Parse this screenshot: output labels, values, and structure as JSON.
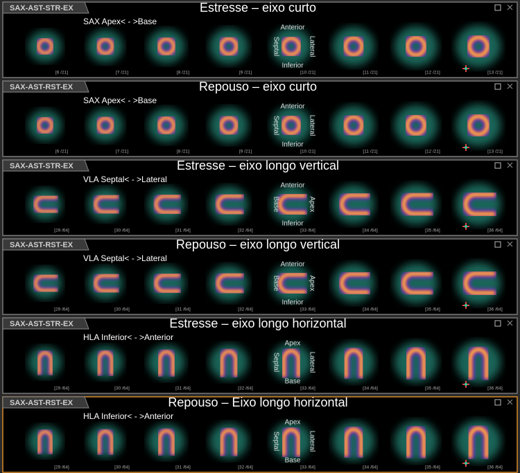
{
  "panels": [
    {
      "tab": "SAX-AST-STR-EX",
      "title": "Estresse – eixo curto",
      "orientation": "SAX  Apex< - >Base",
      "slices": [
        "[6 /21]",
        "[7 /21]",
        "[8 /21]",
        "[9 /21]",
        "[10 /21]",
        "[11 /21]",
        "[12 /21]",
        "[13 /21]"
      ],
      "markers": {
        "top": "Anterior",
        "bottom": "Inferior",
        "left": "Septal",
        "right": "Lateral"
      }
    },
    {
      "tab": "SAX-AST-RST-EX",
      "title": "Repouso – eixo curto",
      "orientation": "SAX  Apex< - >Base",
      "slices": [
        "[6 /21]",
        "[7 /21]",
        "[8 /21]",
        "[9 /21]",
        "[10 /21]",
        "[11 /21]",
        "[12 /21]",
        "[13 /21]"
      ],
      "markers": {
        "top": "Anterior",
        "bottom": "Inferior",
        "left": "Septal",
        "right": "Lateral"
      }
    },
    {
      "tab": "SAX-AST-STR-EX",
      "title": "Estresse – eixo longo vertical",
      "orientation": "VLA  Septal< - >Lateral",
      "slices": [
        "[29 /64]",
        "[30 /64]",
        "[31 /64]",
        "[32 /64]",
        "[33 /64]",
        "[34 /64]",
        "[35 /64]",
        "[36 /64]"
      ],
      "markers": {
        "top": "Anterior",
        "bottom": "Inferior",
        "left": "Base",
        "right": "Apex"
      }
    },
    {
      "tab": "SAX-AST-RST-EX",
      "title": "Repouso – eixo longo vertical",
      "orientation": "VLA  Septal< - >Lateral",
      "slices": [
        "[29 /64]",
        "[30 /64]",
        "[31 /64]",
        "[32 /64]",
        "[33 /64]",
        "[34 /64]",
        "[35 /64]",
        "[36 /64]"
      ],
      "markers": {
        "top": "Anterior",
        "bottom": "Inferior",
        "left": "Base",
        "right": "Apex"
      }
    },
    {
      "tab": "SAX-AST-STR-EX",
      "title": "Estresse – eixo longo horizontal",
      "orientation": "HLA  Inferior< - >Anterior",
      "slices": [
        "[29 /64]",
        "[30 /64]",
        "[31 /64]",
        "[32 /64]",
        "[33 /64]",
        "[34 /64]",
        "[35 /64]",
        "[36 /64]"
      ],
      "markers": {
        "top": "Apex",
        "bottom": "Base",
        "left": "Septal",
        "right": "Lateral"
      }
    },
    {
      "tab": "SAX-AST-RST-EX",
      "title": "Repouso – Eixo longo horizontal",
      "orientation": "HLA  Inferior< - >Anterior",
      "slices": [
        "[29 /64]",
        "[30 /64]",
        "[31 /64]",
        "[32 /64]",
        "[33 /64]",
        "[34 /64]",
        "[35 /64]",
        "[36 /64]"
      ],
      "markers": {
        "top": "Apex",
        "bottom": "Base",
        "left": "Septal",
        "right": "Lateral"
      }
    }
  ]
}
